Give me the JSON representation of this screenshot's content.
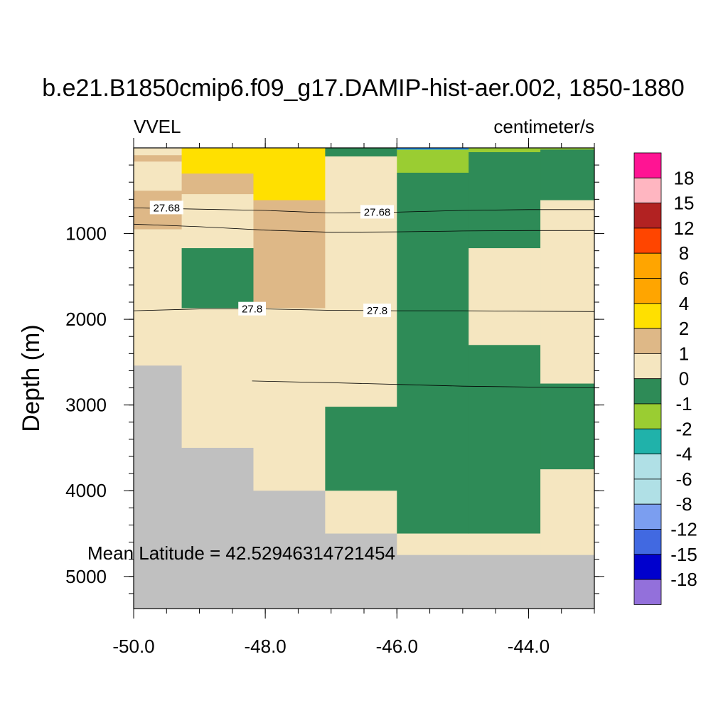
{
  "chart_data": {
    "type": "heatmap",
    "title": "b.e21.B1850cmip6.f09_g17.DAMIP-hist-aer.002, 1850-1880",
    "left_label": "VVEL",
    "right_label": "centimeter/s",
    "xlabel": "",
    "ylabel": "Depth (m)",
    "xlim": [
      -50.0,
      -43.0
    ],
    "ylim": [
      5375,
      0
    ],
    "x_ticks": [
      -50.0,
      -48.0,
      -46.0,
      -44.0
    ],
    "x_tick_labels": [
      "-50.0",
      "-48.0",
      "-46.0",
      "-44.0"
    ],
    "y_ticks": [
      1000,
      2000,
      3000,
      4000,
      5000
    ],
    "y_tick_labels": [
      "1000",
      "2000",
      "3000",
      "4000",
      "5000"
    ],
    "annotation": "Mean Latitude = 42.52946314721454",
    "colorbar": {
      "labels": [
        "18",
        "15",
        "12",
        "8",
        "6",
        "4",
        "2",
        "1",
        "0",
        "-1",
        "-2",
        "-4",
        "-6",
        "-8",
        "-12",
        "-15",
        "-18"
      ],
      "colors": [
        "#ff1493",
        "#ffb6c1",
        "#b22222",
        "#ff4500",
        "#ffa500",
        "#ffa500",
        "#ffe000",
        "#deb887",
        "#f5e6c0",
        "#2e8b57",
        "#9acd32",
        "#20b2aa",
        "#b0e0e6",
        "#b0e0e6",
        "#7b9ef0",
        "#4169e1",
        "#0000cd",
        "#9370db"
      ]
    },
    "columns": [
      {
        "x0": -50.0,
        "x1": -49.27,
        "cells": [
          {
            "d0": 0,
            "d1": 85,
            "color": "#f5e6c0"
          },
          {
            "d0": 85,
            "d1": 160,
            "color": "#deb887"
          },
          {
            "d0": 160,
            "d1": 500,
            "color": "#f5e6c0"
          },
          {
            "d0": 500,
            "d1": 950,
            "color": "#deb887"
          },
          {
            "d0": 950,
            "d1": 2540,
            "color": "#f5e6c0"
          },
          {
            "d0": 2540,
            "d1": 5375,
            "color": "#c0c0c0"
          }
        ]
      },
      {
        "x0": -49.27,
        "x1": -48.18,
        "cells": [
          {
            "d0": 0,
            "d1": 300,
            "color": "#ffe000"
          },
          {
            "d0": 300,
            "d1": 540,
            "color": "#deb887"
          },
          {
            "d0": 540,
            "d1": 1170,
            "color": "#f5e6c0"
          },
          {
            "d0": 1170,
            "d1": 1870,
            "color": "#2e8b57"
          },
          {
            "d0": 1870,
            "d1": 3500,
            "color": "#f5e6c0"
          },
          {
            "d0": 3500,
            "d1": 5375,
            "color": "#c0c0c0"
          }
        ]
      },
      {
        "x0": -48.18,
        "x1": -47.09,
        "cells": [
          {
            "d0": 0,
            "d1": 610,
            "color": "#ffe000"
          },
          {
            "d0": 610,
            "d1": 1870,
            "color": "#deb887"
          },
          {
            "d0": 1870,
            "d1": 4000,
            "color": "#f5e6c0"
          },
          {
            "d0": 4000,
            "d1": 5375,
            "color": "#c0c0c0"
          }
        ]
      },
      {
        "x0": -47.09,
        "x1": -46.0,
        "cells": [
          {
            "d0": 0,
            "d1": 100,
            "color": "#2e8b57"
          },
          {
            "d0": 100,
            "d1": 3020,
            "color": "#f5e6c0"
          },
          {
            "d0": 3020,
            "d1": 4000,
            "color": "#2e8b57"
          },
          {
            "d0": 4000,
            "d1": 4500,
            "color": "#f5e6c0"
          },
          {
            "d0": 4500,
            "d1": 5375,
            "color": "#c0c0c0"
          }
        ]
      },
      {
        "x0": -46.0,
        "x1": -44.91,
        "cells": [
          {
            "d0": 0,
            "d1": 20,
            "color": "#1e90ff"
          },
          {
            "d0": 20,
            "d1": 290,
            "color": "#9acd32"
          },
          {
            "d0": 290,
            "d1": 4500,
            "color": "#2e8b57"
          },
          {
            "d0": 4500,
            "d1": 4750,
            "color": "#f5e6c0"
          },
          {
            "d0": 4750,
            "d1": 5375,
            "color": "#c0c0c0"
          }
        ]
      },
      {
        "x0": -44.91,
        "x1": -43.82,
        "cells": [
          {
            "d0": 0,
            "d1": 50,
            "color": "#9acd32"
          },
          {
            "d0": 50,
            "d1": 1170,
            "color": "#2e8b57"
          },
          {
            "d0": 1170,
            "d1": 2300,
            "color": "#f5e6c0"
          },
          {
            "d0": 2300,
            "d1": 4500,
            "color": "#2e8b57"
          },
          {
            "d0": 4500,
            "d1": 4750,
            "color": "#f5e6c0"
          },
          {
            "d0": 4750,
            "d1": 5375,
            "color": "#c0c0c0"
          }
        ]
      },
      {
        "x0": -43.82,
        "x1": -43.0,
        "cells": [
          {
            "d0": 0,
            "d1": 20,
            "color": "#9acd32"
          },
          {
            "d0": 20,
            "d1": 610,
            "color": "#2e8b57"
          },
          {
            "d0": 610,
            "d1": 2750,
            "color": "#f5e6c0"
          },
          {
            "d0": 2750,
            "d1": 3750,
            "color": "#2e8b57"
          },
          {
            "d0": 3750,
            "d1": 4750,
            "color": "#f5e6c0"
          },
          {
            "d0": 4750,
            "d1": 5375,
            "color": "#c0c0c0"
          }
        ]
      }
    ],
    "contours": [
      {
        "points": [
          [
            -50.0,
            700
          ],
          [
            -48.0,
            730
          ],
          [
            -47.0,
            760
          ],
          [
            -46.0,
            750
          ],
          [
            -45.0,
            730
          ],
          [
            -44.0,
            720
          ],
          [
            -43.0,
            720
          ]
        ],
        "labels": [
          {
            "x": -49.5,
            "y": 700,
            "text": "27.68"
          },
          {
            "x": -46.3,
            "y": 750,
            "text": "27.68"
          }
        ]
      },
      {
        "points": [
          [
            -50.0,
            890
          ],
          [
            -49.0,
            920
          ],
          [
            -48.0,
            960
          ],
          [
            -47.0,
            985
          ],
          [
            -46.0,
            980
          ],
          [
            -45.0,
            970
          ],
          [
            -44.0,
            965
          ],
          [
            -43.0,
            965
          ]
        ],
        "labels": []
      },
      {
        "points": [
          [
            -50.0,
            1900
          ],
          [
            -49.0,
            1880
          ],
          [
            -48.0,
            1880
          ],
          [
            -47.0,
            1895
          ],
          [
            -46.0,
            1900
          ],
          [
            -45.0,
            1900
          ],
          [
            -44.0,
            1905
          ],
          [
            -43.0,
            1910
          ]
        ],
        "labels": [
          {
            "x": -48.2,
            "y": 1880,
            "text": "27.8"
          },
          {
            "x": -46.3,
            "y": 1900,
            "text": "27.8"
          }
        ]
      },
      {
        "points": [
          [
            -48.2,
            2720
          ],
          [
            -47.0,
            2740
          ],
          [
            -46.0,
            2760
          ],
          [
            -45.0,
            2780
          ],
          [
            -44.0,
            2790
          ],
          [
            -43.0,
            2800
          ]
        ],
        "labels": []
      }
    ]
  }
}
